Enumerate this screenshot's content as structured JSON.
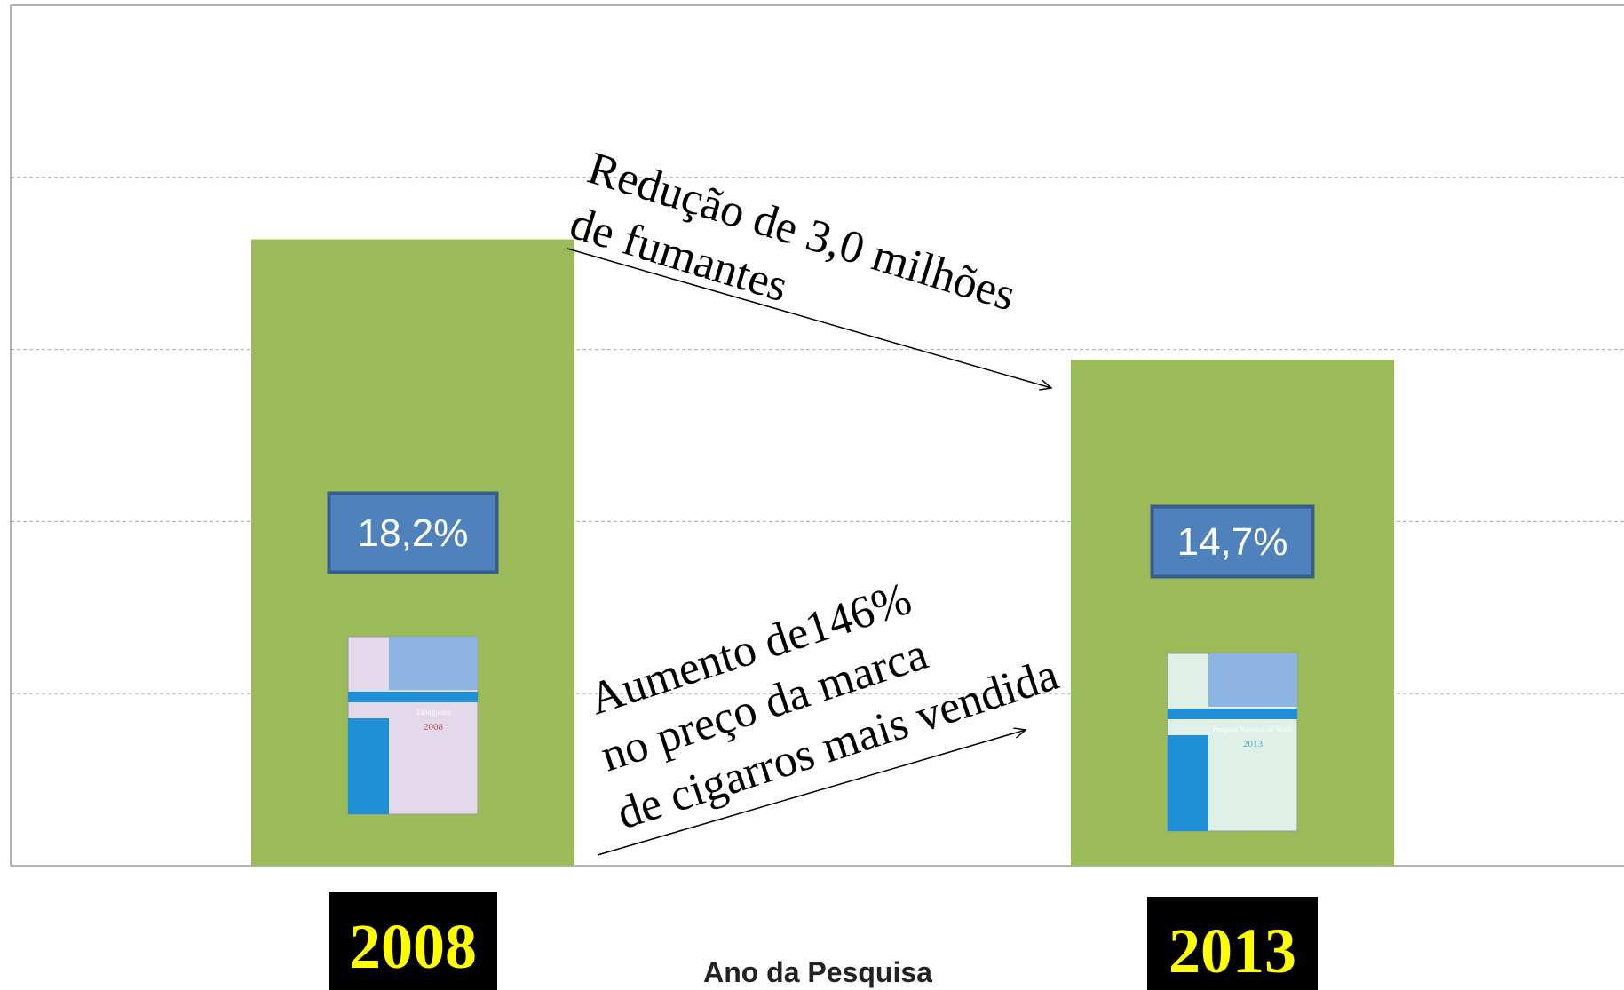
{
  "chart_data": {
    "type": "bar",
    "x_label": "Ano da Pesquisa",
    "categories": [
      "2008",
      "2013"
    ],
    "values": [
      18.2,
      14.7
    ],
    "value_labels": [
      "18,2%",
      "14,7%"
    ],
    "color": "#9bbb59",
    "ylim": [
      0,
      25
    ],
    "yticks": [
      0,
      5,
      10,
      15,
      20,
      25
    ],
    "grid": true,
    "annotations": [
      {
        "lines": [
          "Redução de 3,0 milhões",
          "de fumantes"
        ]
      },
      {
        "lines": [
          "Aumento de146%",
          "no preço da marca",
          "de cigarros mais vendida"
        ]
      }
    ],
    "cover_labels": [
      [
        "Tabagismo",
        "2008"
      ],
      [
        "Pesquisa Nacional de Saúde",
        "2013"
      ]
    ]
  }
}
